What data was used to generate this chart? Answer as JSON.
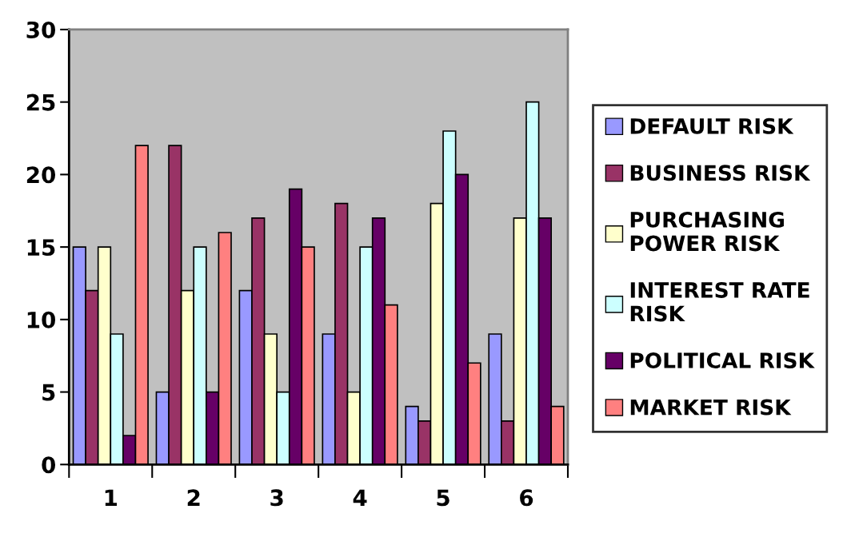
{
  "chart_data": {
    "type": "bar",
    "categories": [
      "1",
      "2",
      "3",
      "4",
      "5",
      "6"
    ],
    "series": [
      {
        "name": "DEFAULT RISK",
        "color": "#9999ff",
        "values": [
          15,
          5,
          12,
          9,
          4,
          9
        ]
      },
      {
        "name": "BUSINESS RISK",
        "color": "#993366",
        "values": [
          12,
          22,
          17,
          18,
          3,
          3
        ]
      },
      {
        "name": "PURCHASING\nPOWER RISK",
        "color": "#ffffcc",
        "values": [
          15,
          12,
          9,
          5,
          18,
          17
        ]
      },
      {
        "name": "INTEREST RATE\nRISK",
        "color": "#ccffff",
        "values": [
          9,
          15,
          5,
          15,
          23,
          25
        ]
      },
      {
        "name": "POLITICAL RISK",
        "color": "#660066",
        "values": [
          2,
          5,
          19,
          17,
          20,
          17
        ]
      },
      {
        "name": "MARKET RISK",
        "color": "#ff8080",
        "values": [
          22,
          16,
          15,
          11,
          7,
          4
        ]
      }
    ],
    "ylim": [
      0,
      30
    ],
    "yticks": [
      0,
      5,
      10,
      15,
      20,
      25,
      30
    ],
    "grid": false,
    "legend": "right"
  }
}
